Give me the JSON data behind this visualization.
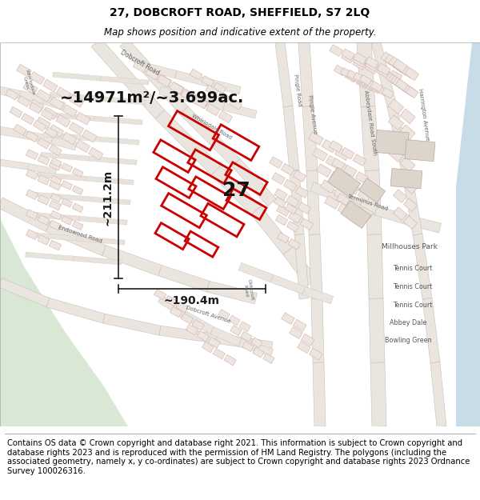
{
  "title_line1": "27, DOBCROFT ROAD, SHEFFIELD, S7 2LQ",
  "title_line2": "Map shows position and indicative extent of the property.",
  "footer_text": "Contains OS data © Crown copyright and database right 2021. This information is subject to Crown copyright and database rights 2023 and is reproduced with the permission of HM Land Registry. The polygons (including the associated geometry, namely x, y co-ordinates) are subject to Crown copyright and database rights 2023 Ordnance Survey 100026316.",
  "area_label": "~14971m²/~3.699ac.",
  "width_label": "~190.4m",
  "height_label": "~211.2m",
  "property_number": "27",
  "bg_color": "#ffffff",
  "green_color": "#d8e8d5",
  "water_color": "#c8dce8",
  "road_fill": "#e8e0d8",
  "road_center": "#f5f2ee",
  "building_fill": "#e8e0d8",
  "building_stroke": "#d4afa8",
  "red_color": "#cc0000",
  "meas_color": "#1a1a1a",
  "title_fontsize": 10,
  "subtitle_fontsize": 8.5,
  "footer_fontsize": 7.2,
  "area_fontsize": 14,
  "number_fontsize": 18,
  "meas_fontsize": 10
}
